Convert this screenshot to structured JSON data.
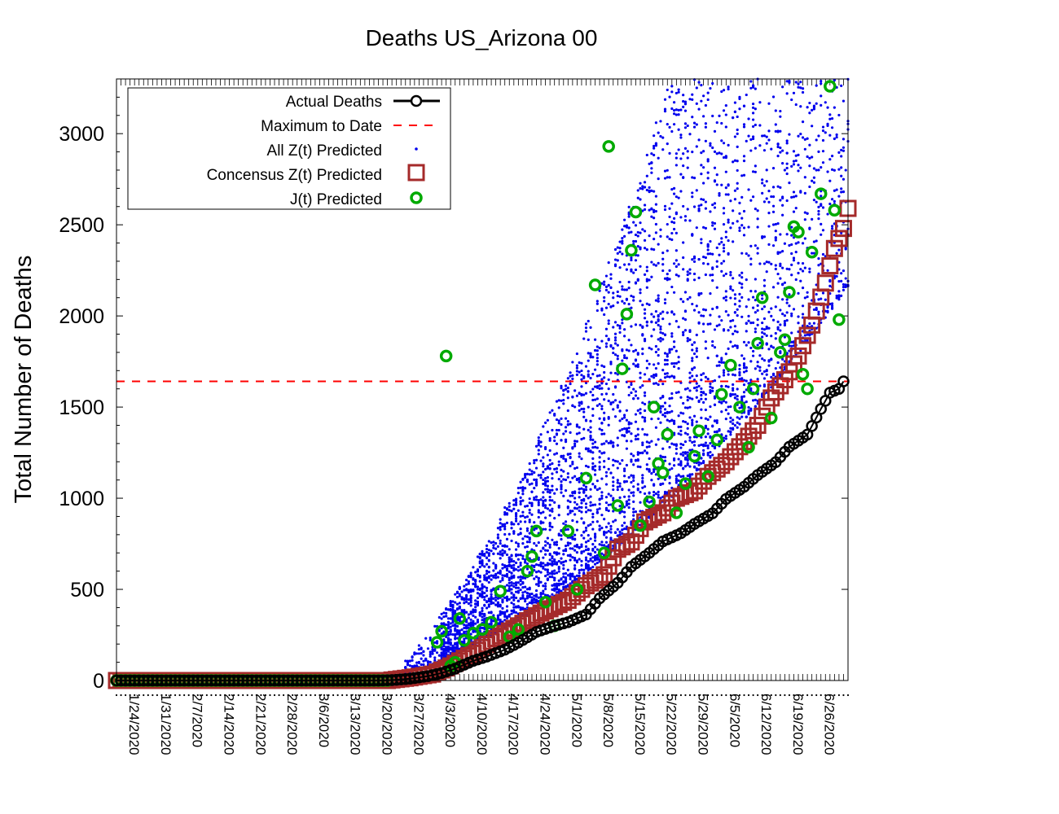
{
  "chart_data": {
    "type": "scatter",
    "title": "Deaths US_Arizona 00",
    "ylabel": "Total Number of Deaths",
    "xlabel": "",
    "xlim": [
      "1/22/2020",
      "7/2/2020"
    ],
    "ylim": [
      0,
      3300
    ],
    "yticks": [
      0,
      500,
      1000,
      1500,
      2000,
      2500,
      3000
    ],
    "xtick_labels": [
      "1/24/2020",
      "1/31/2020",
      "2/7/2020",
      "2/14/2020",
      "2/21/2020",
      "2/28/2020",
      "3/6/2020",
      "3/13/2020",
      "3/20/2020",
      "3/27/2020",
      "4/3/2020",
      "4/10/2020",
      "4/17/2020",
      "4/24/2020",
      "5/1/2020",
      "5/8/2020",
      "5/15/2020",
      "5/22/2020",
      "5/29/2020",
      "6/5/2020",
      "6/12/2020",
      "6/19/2020",
      "6/26/2020"
    ],
    "legend_position": "top-left",
    "grid": false,
    "colors": {
      "actual": "#000000",
      "maximum": "#ff0000",
      "all_z": "#0000ee",
      "consensus": "#a52a2a",
      "j": "#00aa00"
    },
    "series": [
      {
        "name": "Actual Deaths",
        "style": "line-circle",
        "points": [
          [
            "1/22/2020",
            0
          ],
          [
            "3/20/2020",
            0
          ],
          [
            "3/23/2020",
            2
          ],
          [
            "3/27/2020",
            10
          ],
          [
            "3/31/2020",
            24
          ],
          [
            "4/3/2020",
            41
          ],
          [
            "4/6/2020",
            65
          ],
          [
            "4/10/2020",
            108
          ],
          [
            "4/13/2020",
            131
          ],
          [
            "4/17/2020",
            169
          ],
          [
            "4/20/2020",
            208
          ],
          [
            "4/24/2020",
            266
          ],
          [
            "4/28/2020",
            300
          ],
          [
            "5/1/2020",
            320
          ],
          [
            "5/5/2020",
            362
          ],
          [
            "5/8/2020",
            451
          ],
          [
            "5/12/2020",
            536
          ],
          [
            "5/15/2020",
            624
          ],
          [
            "5/19/2020",
            700
          ],
          [
            "5/22/2020",
            763
          ],
          [
            "5/26/2020",
            808
          ],
          [
            "5/29/2020",
            859
          ],
          [
            "6/2/2020",
            917
          ],
          [
            "6/5/2020",
            996
          ],
          [
            "6/9/2020",
            1063
          ],
          [
            "6/12/2020",
            1127
          ],
          [
            "6/16/2020",
            1198
          ],
          [
            "6/19/2020",
            1282
          ],
          [
            "6/23/2020",
            1349
          ],
          [
            "6/26/2020",
            1490
          ],
          [
            "6/28/2020",
            1579
          ],
          [
            "6/30/2020",
            1600
          ],
          [
            "7/1/2020",
            1641
          ]
        ]
      },
      {
        "name": "Maximum to Date",
        "style": "dashed",
        "value": 1641
      },
      {
        "name": "All Z(t) Predicted",
        "style": "dots",
        "note_points": "spread clouds"
      },
      {
        "name": "Concensus Z(t) Predicted",
        "style": "square",
        "points": [
          [
            "1/22/2020",
            0
          ],
          [
            "3/22/2020",
            0
          ],
          [
            "3/27/2020",
            15
          ],
          [
            "4/1/2020",
            35
          ],
          [
            "4/5/2020",
            80
          ],
          [
            "4/10/2020",
            150
          ],
          [
            "4/15/2020",
            230
          ],
          [
            "4/20/2020",
            300
          ],
          [
            "4/25/2020",
            370
          ],
          [
            "5/1/2020",
            440
          ],
          [
            "5/5/2020",
            520
          ],
          [
            "5/9/2020",
            580
          ],
          [
            "5/12/2020",
            720
          ],
          [
            "5/15/2020",
            760
          ],
          [
            "5/18/2020",
            870
          ],
          [
            "5/22/2020",
            920
          ],
          [
            "5/25/2020",
            1000
          ],
          [
            "5/29/2020",
            1040
          ],
          [
            "6/1/2020",
            1120
          ],
          [
            "6/5/2020",
            1200
          ],
          [
            "6/9/2020",
            1310
          ],
          [
            "6/12/2020",
            1400
          ],
          [
            "6/15/2020",
            1550
          ],
          [
            "6/18/2020",
            1650
          ],
          [
            "6/21/2020",
            1780
          ],
          [
            "6/24/2020",
            1950
          ],
          [
            "6/27/2020",
            2180
          ],
          [
            "6/29/2020",
            2370
          ],
          [
            "7/1/2020",
            2480
          ],
          [
            "7/2/2020",
            2590
          ]
        ]
      },
      {
        "name": "J(t) Predicted",
        "style": "circle",
        "points": [
          [
            "1/22/2020",
            0
          ],
          [
            "3/22/2020",
            0
          ],
          [
            "4/2/2020",
            210
          ],
          [
            "4/3/2020",
            270
          ],
          [
            "4/4/2020",
            1780
          ],
          [
            "4/5/2020",
            80
          ],
          [
            "4/6/2020",
            100
          ],
          [
            "4/7/2020",
            340
          ],
          [
            "4/8/2020",
            220
          ],
          [
            "4/10/2020",
            260
          ],
          [
            "4/12/2020",
            280
          ],
          [
            "4/14/2020",
            320
          ],
          [
            "4/16/2020",
            490
          ],
          [
            "4/18/2020",
            240
          ],
          [
            "4/20/2020",
            280
          ],
          [
            "4/22/2020",
            600
          ],
          [
            "4/23/2020",
            680
          ],
          [
            "4/24/2020",
            820
          ],
          [
            "4/26/2020",
            430
          ],
          [
            "4/28/2020",
            300
          ],
          [
            "5/1/2020",
            820
          ],
          [
            "5/3/2020",
            500
          ],
          [
            "5/5/2020",
            1110
          ],
          [
            "5/7/2020",
            2170
          ],
          [
            "5/9/2020",
            700
          ],
          [
            "5/10/2020",
            2930
          ],
          [
            "5/12/2020",
            960
          ],
          [
            "5/13/2020",
            1710
          ],
          [
            "5/14/2020",
            2010
          ],
          [
            "5/15/2020",
            2360
          ],
          [
            "5/16/2020",
            2570
          ],
          [
            "5/17/2020",
            850
          ],
          [
            "5/19/2020",
            980
          ],
          [
            "5/20/2020",
            1500
          ],
          [
            "5/21/2020",
            1190
          ],
          [
            "5/22/2020",
            1140
          ],
          [
            "5/23/2020",
            1350
          ],
          [
            "5/25/2020",
            920
          ],
          [
            "5/27/2020",
            1080
          ],
          [
            "5/29/2020",
            1230
          ],
          [
            "5/30/2020",
            1370
          ],
          [
            "6/1/2020",
            1120
          ],
          [
            "6/3/2020",
            1320
          ],
          [
            "6/4/2020",
            1570
          ],
          [
            "6/6/2020",
            1730
          ],
          [
            "6/8/2020",
            1500
          ],
          [
            "6/10/2020",
            1280
          ],
          [
            "6/11/2020",
            1600
          ],
          [
            "6/12/2020",
            1850
          ],
          [
            "6/13/2020",
            2100
          ],
          [
            "6/15/2020",
            1440
          ],
          [
            "6/17/2020",
            1800
          ],
          [
            "6/18/2020",
            1870
          ],
          [
            "6/19/2020",
            2130
          ],
          [
            "6/20/2020",
            2490
          ],
          [
            "6/21/2020",
            2460
          ],
          [
            "6/22/2020",
            1680
          ],
          [
            "6/23/2020",
            1600
          ],
          [
            "6/24/2020",
            2350
          ],
          [
            "6/26/2020",
            2670
          ],
          [
            "6/28/2020",
            3260
          ],
          [
            "6/29/2020",
            2580
          ],
          [
            "6/30/2020",
            1980
          ]
        ]
      }
    ]
  }
}
